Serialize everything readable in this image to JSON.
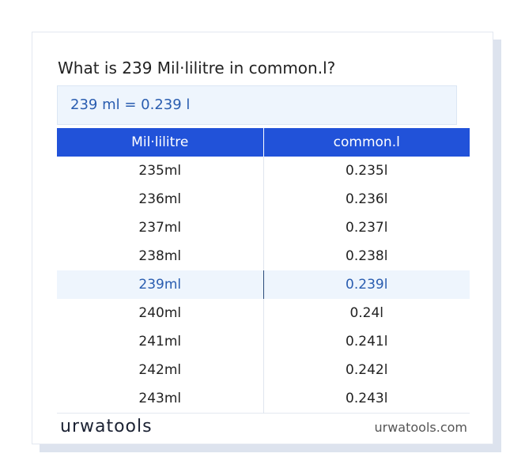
{
  "header": {
    "title": "What is 239 Mil·lilitre in common.l?"
  },
  "result": "239 ml = 0.239 l",
  "table": {
    "columns": [
      "Mil·lilitre",
      "common.l"
    ],
    "rows": [
      [
        "235ml",
        "0.235l"
      ],
      [
        "236ml",
        "0.236l"
      ],
      [
        "237ml",
        "0.237l"
      ],
      [
        "238ml",
        "0.238l"
      ],
      [
        "239ml",
        "0.239l"
      ],
      [
        "240ml",
        "0.24l"
      ],
      [
        "241ml",
        "0.241l"
      ],
      [
        "242ml",
        "0.242l"
      ],
      [
        "243ml",
        "0.243l"
      ]
    ]
  },
  "footer": {
    "logo": "urwatools",
    "site": "urwatools.com"
  }
}
